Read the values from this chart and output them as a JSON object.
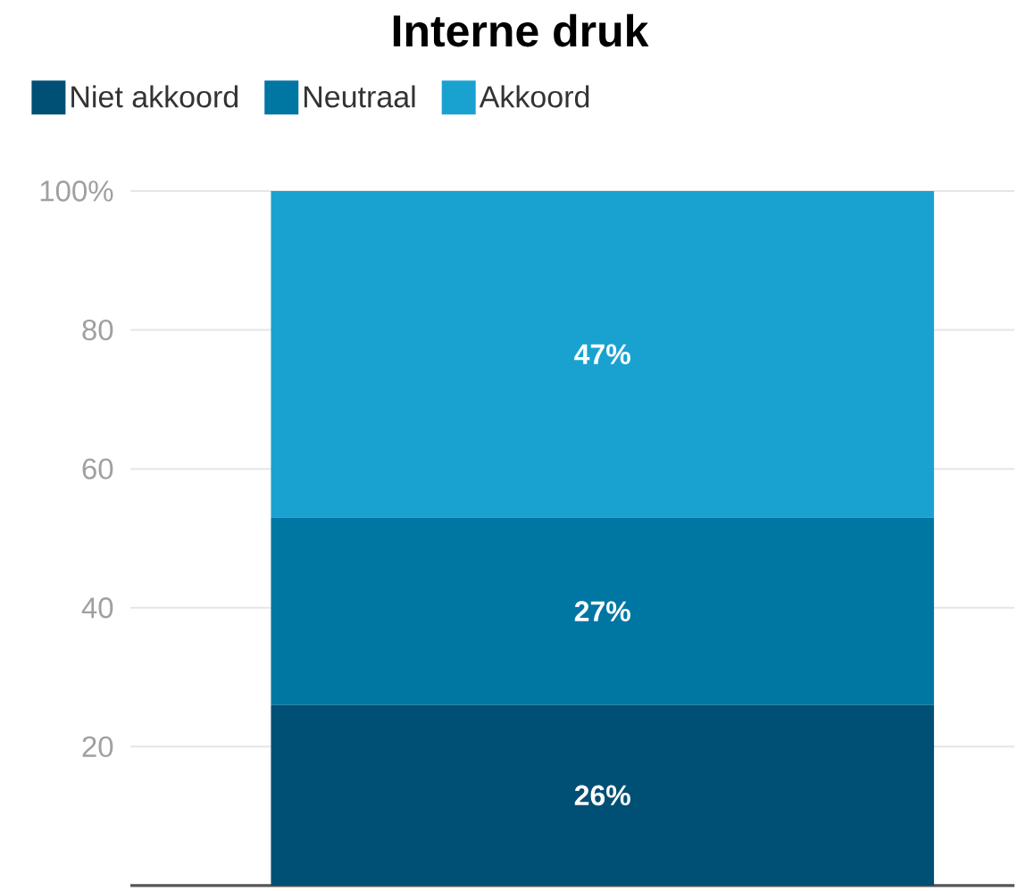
{
  "chart_data": {
    "type": "bar",
    "title": "Interne druk",
    "categories": [
      null
    ],
    "stacked": true,
    "series": [
      {
        "name": "Niet akkoord",
        "color": "#004f74",
        "values": [
          26
        ],
        "value_labels": [
          "26%"
        ]
      },
      {
        "name": "Neutraal",
        "color": "#0076a3",
        "values": [
          27
        ],
        "value_labels": [
          "27%"
        ]
      },
      {
        "name": "Akkoord",
        "color": "#19a2d0",
        "values": [
          47
        ],
        "value_labels": [
          "47%"
        ]
      }
    ],
    "ylim": [
      0,
      100
    ],
    "yticks": [
      {
        "value": 100,
        "label": "100%"
      },
      80,
      60,
      40,
      20
    ],
    "grid": "y",
    "legend": "top left",
    "tick_labels": "y"
  }
}
